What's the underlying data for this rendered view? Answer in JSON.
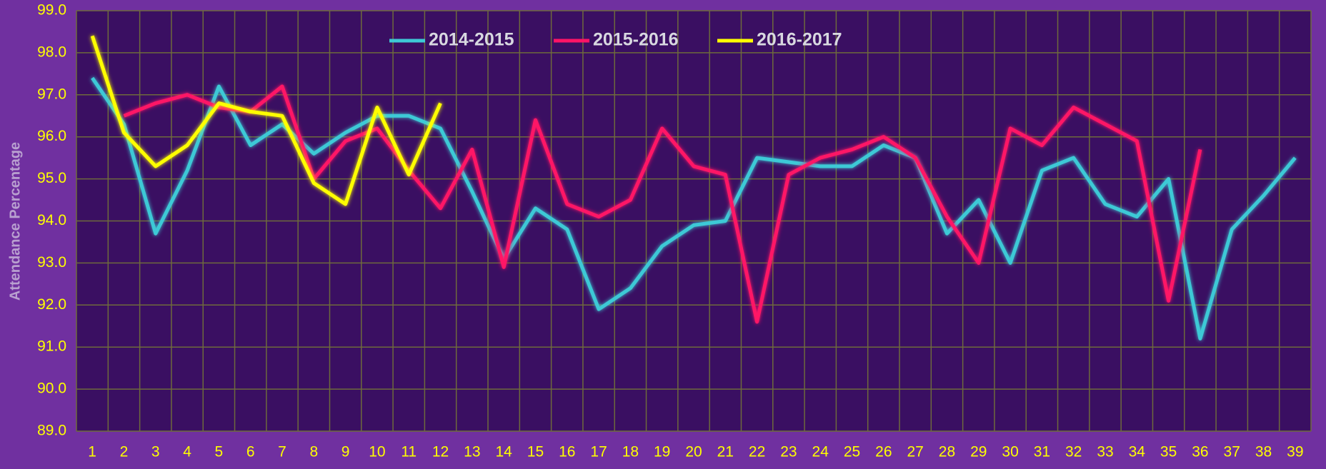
{
  "chart_data": {
    "type": "line",
    "y_label": "Attendance Percentage",
    "categories": [
      1,
      2,
      3,
      4,
      5,
      6,
      7,
      8,
      9,
      10,
      11,
      12,
      13,
      14,
      15,
      16,
      17,
      18,
      19,
      20,
      21,
      22,
      23,
      24,
      25,
      26,
      27,
      28,
      29,
      30,
      31,
      32,
      33,
      34,
      35,
      36,
      37,
      38,
      39
    ],
    "series": [
      {
        "name": "2014-2015",
        "color": "#3ec9d6",
        "values": [
          97.4,
          96.3,
          93.7,
          95.2,
          97.2,
          95.8,
          96.3,
          95.6,
          96.1,
          96.5,
          96.5,
          96.2,
          94.7,
          93.1,
          94.3,
          93.8,
          91.9,
          92.4,
          93.4,
          93.9,
          94.0,
          95.5,
          95.4,
          95.3,
          95.3,
          95.8,
          95.5,
          93.7,
          94.5,
          93.0,
          95.2,
          95.5,
          94.4,
          94.1,
          95.0,
          91.2,
          93.8,
          94.6,
          95.5
        ]
      },
      {
        "name": "2015-2016",
        "color": "#ff1466",
        "values": [
          null,
          96.5,
          96.8,
          97.0,
          96.7,
          96.6,
          97.2,
          95.0,
          95.9,
          96.2,
          95.2,
          94.3,
          95.7,
          92.9,
          96.4,
          94.4,
          94.1,
          94.5,
          96.2,
          95.3,
          95.1,
          91.6,
          95.1,
          95.5,
          95.7,
          96.0,
          95.5,
          94.1,
          93.0,
          96.2,
          95.8,
          96.7,
          96.3,
          95.9,
          92.1,
          95.7,
          null,
          null,
          null
        ]
      },
      {
        "name": "2016-2017",
        "color": "#ffff00",
        "values": [
          98.4,
          96.1,
          95.3,
          95.8,
          96.8,
          96.6,
          96.5,
          94.9,
          94.4,
          96.7,
          95.1,
          96.8,
          null,
          null,
          null,
          null,
          null,
          null,
          null,
          null,
          null,
          null,
          null,
          null,
          null,
          null,
          null,
          null,
          null,
          null,
          null,
          null,
          null,
          null,
          null,
          null,
          null,
          null,
          null
        ]
      }
    ],
    "ylim": [
      89,
      99
    ],
    "yticks": [
      {
        "value": 89,
        "label": "89.0"
      },
      {
        "value": 90,
        "label": "90.0"
      },
      {
        "value": 91,
        "label": "91.0"
      },
      {
        "value": 92,
        "label": "92.0"
      },
      {
        "value": 93,
        "label": "93.0"
      },
      {
        "value": 94,
        "label": "94.0"
      },
      {
        "value": 95,
        "label": "95.0"
      },
      {
        "value": 96,
        "label": "96.0"
      },
      {
        "value": 97,
        "label": "97.0"
      },
      {
        "value": 98,
        "label": "98.0"
      },
      {
        "value": 99,
        "label": "99.0"
      }
    ],
    "grid": true,
    "legend": "top"
  }
}
